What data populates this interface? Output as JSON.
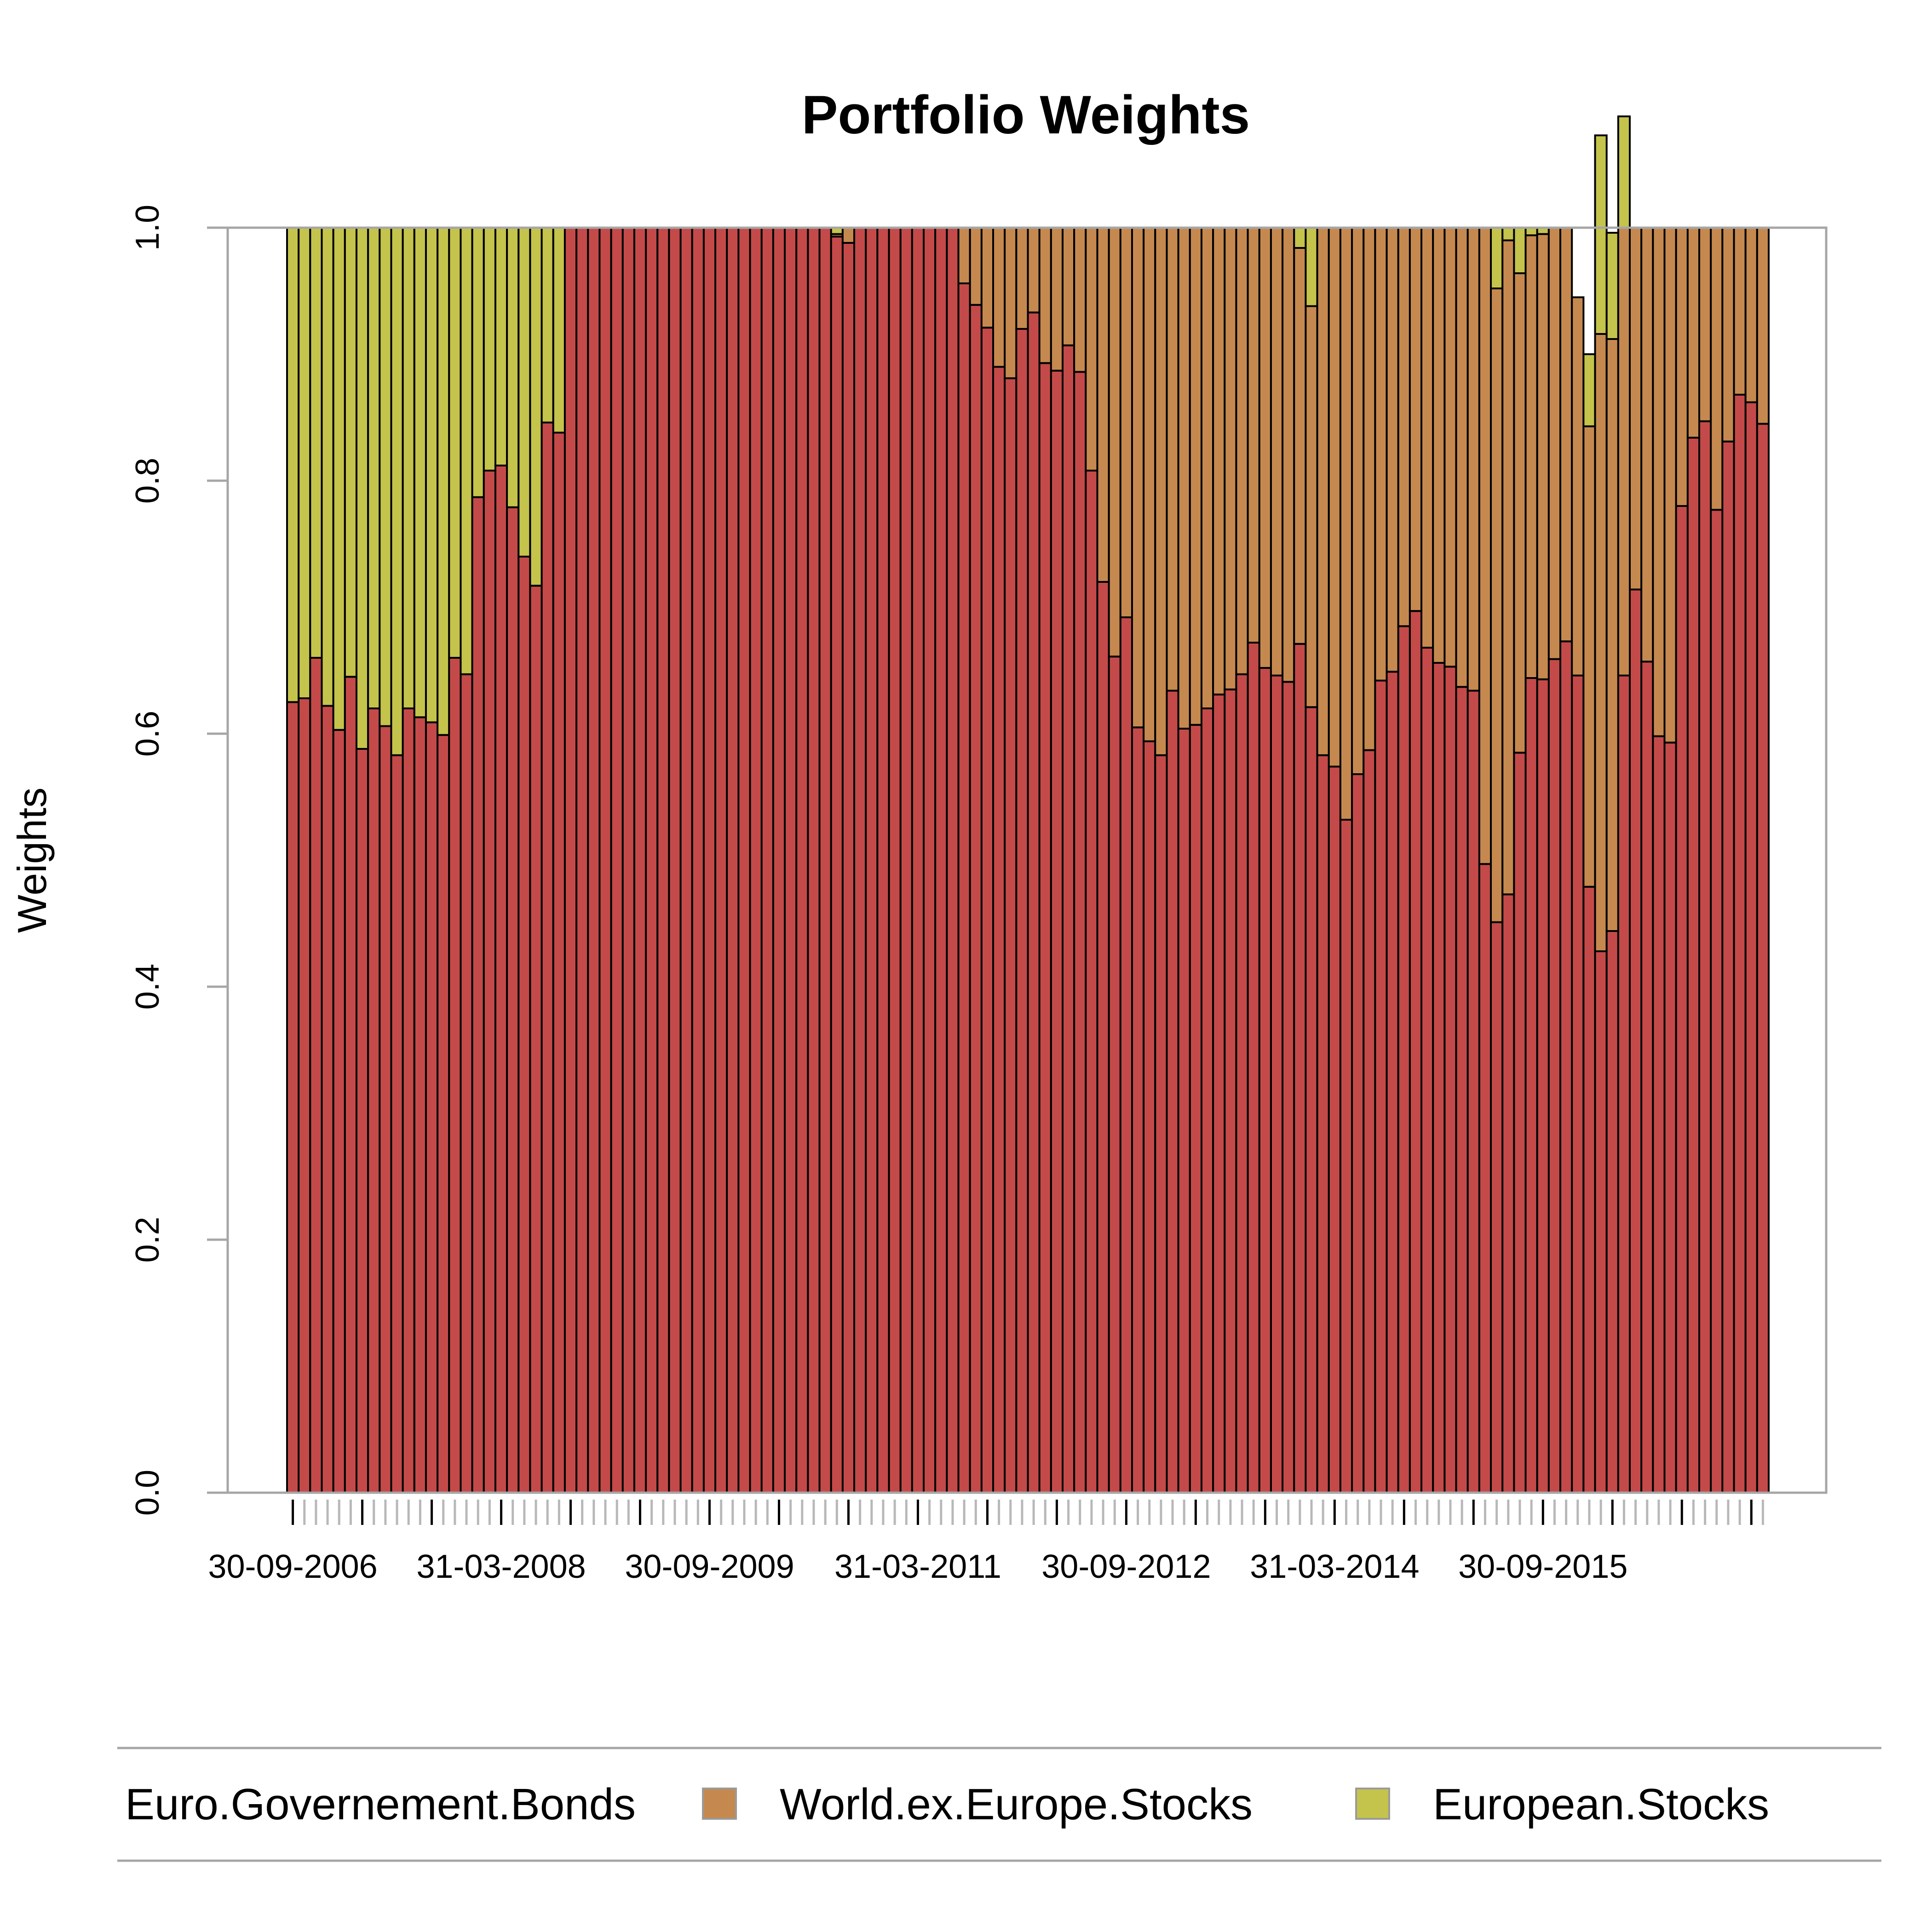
{
  "chart_data": {
    "type": "bar",
    "stacked": true,
    "title": "Portfolio Weights",
    "xlabel": "",
    "ylabel": "Weights",
    "ylim": [
      0,
      1
    ],
    "yticks": [
      "0.0",
      "0.2",
      "0.4",
      "0.6",
      "0.8",
      "1.0"
    ],
    "xtick_labels": [
      "30-09-2006",
      "31-03-2008",
      "30-09-2009",
      "31-03-2011",
      "30-09-2012",
      "31-03-2014",
      "30-09-2015"
    ],
    "grid": false,
    "legend_position": "bottom",
    "series": [
      {
        "name": "Euro.Governement.Bonds",
        "color": "#c44a4a",
        "values": [
          0.625,
          0.628,
          0.66,
          0.622,
          0.603,
          0.645,
          0.588,
          0.62,
          0.606,
          0.583,
          0.62,
          0.613,
          0.609,
          0.599,
          0.66,
          0.647,
          0.787,
          0.808,
          0.812,
          0.779,
          0.74,
          0.717,
          0.846,
          0.838,
          1,
          1,
          1,
          1,
          1,
          1,
          1,
          1,
          1,
          1,
          1,
          1,
          1,
          1,
          1,
          1,
          1,
          1,
          1,
          1,
          1,
          1,
          1,
          0.993,
          0.988,
          1,
          1,
          1,
          1,
          1,
          1,
          1,
          1,
          1,
          0.956,
          0.939,
          0.921,
          0.89,
          0.881,
          0.92,
          0.933,
          0.893,
          0.887,
          0.907,
          0.886,
          0.808,
          0.72,
          0.661,
          0.692,
          0.605,
          0.594,
          0.583,
          0.634,
          0.604,
          0.607,
          0.62,
          0.631,
          0.635,
          0.647,
          0.672,
          0.652,
          0.646,
          0.641,
          0.671,
          0.621,
          0.583,
          0.574,
          0.532,
          0.568,
          0.587,
          0.642,
          0.649,
          0.685,
          0.697,
          0.668,
          0.656,
          0.653,
          0.637,
          0.634,
          0.497,
          0.451,
          0.473,
          0.585,
          0.644,
          0.643,
          0.659,
          0.673,
          0.646,
          0.479,
          0.428,
          0.444,
          0.646,
          0.714,
          0.657,
          0.598,
          0.593,
          0.78,
          0.834,
          0.847,
          0.777,
          0.831,
          0.868,
          0.862,
          0.845
        ]
      },
      {
        "name": "World.ex.Europe.Stocks",
        "color": "#c5894f",
        "values": [
          0,
          0,
          0,
          0,
          0,
          0,
          0,
          0,
          0,
          0,
          0,
          0,
          0,
          0,
          0,
          0,
          0,
          0,
          0,
          0,
          0,
          0,
          0,
          0,
          0,
          0,
          0,
          0,
          0,
          0,
          0,
          0,
          0,
          0,
          0,
          0,
          0,
          0,
          0,
          0,
          0,
          0,
          0,
          0,
          0,
          0,
          0,
          0.002,
          0.012,
          0,
          0,
          0,
          0,
          0,
          0,
          0,
          0,
          0,
          0.044,
          0.061,
          0.079,
          0.11,
          0.119,
          0.08,
          0.067,
          0.107,
          0.113,
          0.093,
          0.114,
          0.192,
          0.28,
          0.339,
          0.308,
          0.395,
          0.406,
          0.417,
          0.366,
          0.396,
          0.393,
          0.38,
          0.369,
          0.365,
          0.353,
          0.328,
          0.348,
          0.354,
          0.359,
          0.313,
          0.317,
          0.417,
          0.426,
          0.468,
          0.432,
          0.413,
          0.358,
          0.351,
          0.315,
          0.303,
          0.332,
          0.344,
          0.347,
          0.363,
          0.366,
          0.503,
          0.501,
          0.517,
          0.379,
          0.35,
          0.352,
          0.341,
          0.327,
          0.299,
          0.364,
          0.488,
          0.468,
          0.354,
          0.286,
          0.343,
          0.402,
          0.407,
          0.22,
          0.166,
          0.153,
          0.223,
          0.169,
          0.132,
          0.138,
          0.155
        ]
      },
      {
        "name": "European.Stocks",
        "color": "#c4c34c",
        "values": [
          0.375,
          0.372,
          0.34,
          0.378,
          0.397,
          0.355,
          0.412,
          0.38,
          0.394,
          0.417,
          0.38,
          0.387,
          0.391,
          0.401,
          0.34,
          0.353,
          0.213,
          0.192,
          0.188,
          0.221,
          0.26,
          0.283,
          0.154,
          0.162,
          0,
          0,
          0,
          0,
          0,
          0,
          0,
          0,
          0,
          0,
          0,
          0,
          0,
          0,
          0,
          0,
          0,
          0,
          0,
          0,
          0,
          0,
          0,
          0.005,
          0,
          0,
          0,
          0,
          0,
          0,
          0,
          0,
          0,
          0,
          0,
          0,
          0,
          0,
          0,
          0,
          0,
          0,
          0,
          0,
          0,
          0,
          0,
          0,
          0,
          0,
          0,
          0,
          0,
          0,
          0,
          0,
          0,
          0,
          0,
          0,
          0,
          0,
          0,
          0.016,
          0.062,
          0,
          0,
          0,
          0,
          0,
          0,
          0,
          0,
          0,
          0,
          0,
          0,
          0,
          0,
          0,
          0.048,
          0.01,
          0.036,
          0.006,
          0.005,
          0,
          0,
          0,
          0.057,
          0.157,
          0.084,
          0.088,
          0,
          0,
          0,
          0,
          0,
          0,
          0,
          0,
          0,
          0,
          0,
          0,
          0
        ]
      }
    ]
  }
}
